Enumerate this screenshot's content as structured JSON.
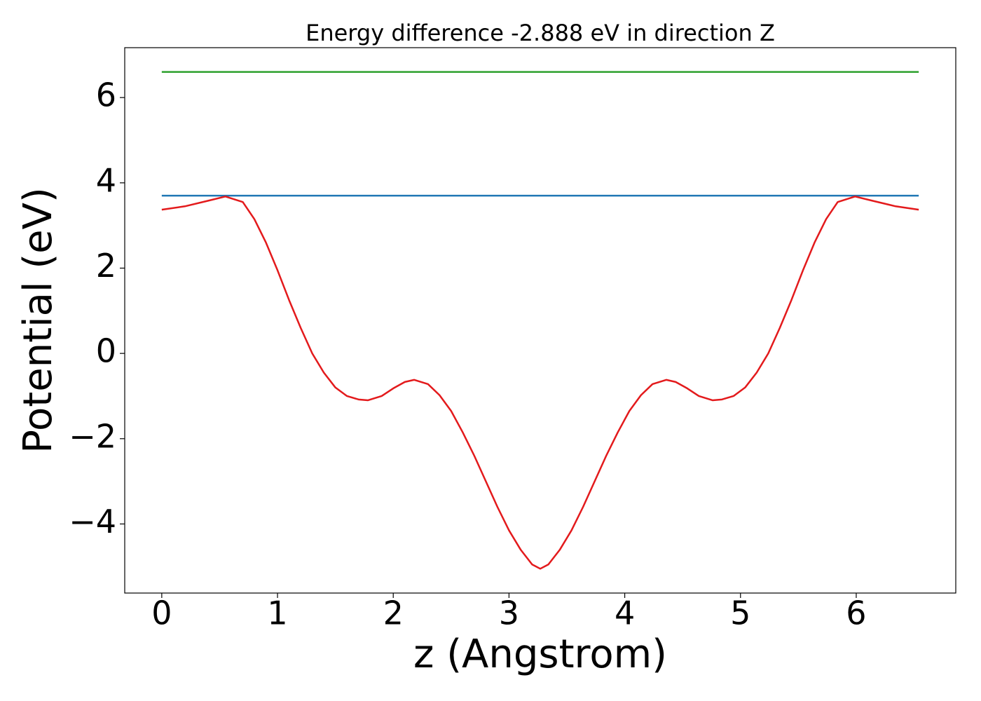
{
  "chart_data": {
    "type": "line",
    "title": "Energy difference -2.888 eV in direction Z",
    "x_label": "z (Angstrom)",
    "y_label": "Potential (eV)",
    "xlim": [
      -0.32,
      6.86
    ],
    "ylim": [
      -5.62,
      7.17
    ],
    "xticks": [
      0,
      1,
      2,
      3,
      4,
      5,
      6
    ],
    "yticks": [
      {
        "value": -4,
        "label": "−4"
      },
      {
        "value": -2,
        "label": "−2"
      },
      0,
      2,
      4,
      6
    ],
    "grid": false,
    "series": [
      {
        "color": "#2ca02c",
        "x": [
          0,
          6.54
        ],
        "values": [
          6.6,
          6.6
        ]
      },
      {
        "color": "#1f77b4",
        "x": [
          0,
          6.54
        ],
        "values": [
          3.7,
          3.7
        ]
      },
      {
        "color": "#e31a1c",
        "x": [
          0,
          0.2,
          0.4,
          0.55,
          0.7,
          0.8,
          0.9,
          1.0,
          1.1,
          1.2,
          1.3,
          1.4,
          1.5,
          1.6,
          1.7,
          1.78,
          1.9,
          2.0,
          2.1,
          2.18,
          2.3,
          2.4,
          2.5,
          2.6,
          2.7,
          2.8,
          2.9,
          3.0,
          3.1,
          3.2,
          3.27,
          3.34,
          3.44,
          3.54,
          3.64,
          3.74,
          3.84,
          3.94,
          4.04,
          4.14,
          4.24,
          4.36,
          4.44,
          4.54,
          4.64,
          4.76,
          4.84,
          4.94,
          5.04,
          5.14,
          5.24,
          5.34,
          5.44,
          5.54,
          5.64,
          5.74,
          5.84,
          5.99,
          6.14,
          6.34,
          6.54
        ],
        "values": [
          3.37,
          3.45,
          3.58,
          3.68,
          3.55,
          3.15,
          2.6,
          1.95,
          1.25,
          0.6,
          0.0,
          -0.45,
          -0.8,
          -1.0,
          -1.08,
          -1.1,
          -1.0,
          -0.82,
          -0.67,
          -0.62,
          -0.72,
          -0.98,
          -1.35,
          -1.85,
          -2.4,
          -3.0,
          -3.6,
          -4.15,
          -4.6,
          -4.95,
          -5.05,
          -4.95,
          -4.6,
          -4.15,
          -3.6,
          -3.0,
          -2.4,
          -1.85,
          -1.35,
          -0.98,
          -0.72,
          -0.62,
          -0.67,
          -0.82,
          -1.0,
          -1.1,
          -1.08,
          -1.0,
          -0.8,
          -0.45,
          0.0,
          0.6,
          1.25,
          1.95,
          2.6,
          3.15,
          3.55,
          3.68,
          3.58,
          3.45,
          3.37
        ]
      }
    ]
  }
}
